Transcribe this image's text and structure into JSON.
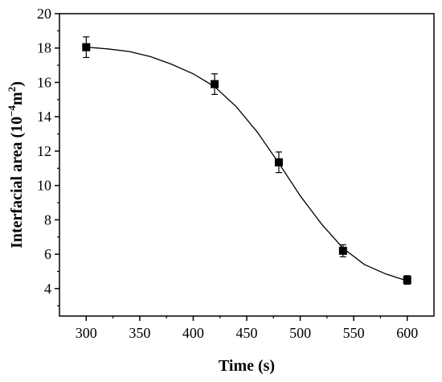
{
  "chart_data": {
    "type": "scatter",
    "title": "",
    "xlabel": "Time (s)",
    "ylabel_prefix": "Interfacial area (10",
    "ylabel_exp1": "−4",
    "ylabel_mid": "m",
    "ylabel_exp2": "2",
    "ylabel_suffix": ")",
    "xlim": [
      275,
      625
    ],
    "ylim": [
      2.4,
      20
    ],
    "xticks": [
      300,
      350,
      400,
      450,
      500,
      550,
      600
    ],
    "yticks": [
      4,
      6,
      8,
      10,
      12,
      14,
      16,
      18,
      20
    ],
    "grid": false,
    "legend": "none",
    "marker": "square",
    "color": "#000000",
    "x": [
      300,
      420,
      480,
      540,
      600
    ],
    "y": [
      18.05,
      15.9,
      11.35,
      6.2,
      4.5
    ],
    "yerr": [
      0.6,
      0.6,
      0.6,
      0.35,
      0.25
    ],
    "fit_curve": {
      "type": "sigmoidal",
      "x": [
        300,
        320,
        340,
        360,
        380,
        400,
        420,
        440,
        460,
        480,
        500,
        520,
        540,
        560,
        580,
        600
      ],
      "y": [
        18.05,
        17.95,
        17.8,
        17.5,
        17.05,
        16.5,
        15.75,
        14.6,
        13.1,
        11.3,
        9.4,
        7.75,
        6.35,
        5.4,
        4.85,
        4.45
      ]
    }
  }
}
